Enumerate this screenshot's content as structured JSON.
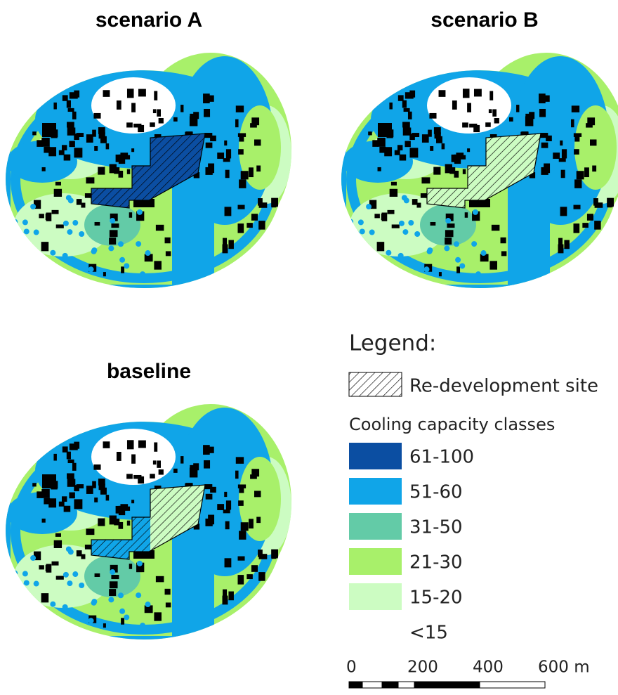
{
  "panels": [
    {
      "title": "scenario A"
    },
    {
      "title": "scenario B"
    },
    {
      "title": "baseline"
    }
  ],
  "legend": {
    "title": "Legend:",
    "site_label": "Re-development site",
    "classes_title": "Cooling capacity classes",
    "classes": [
      {
        "label": "61-100",
        "color": "#0b4ea2"
      },
      {
        "label": "51-60",
        "color": "#10a5e8"
      },
      {
        "label": "31-50",
        "color": "#63cba7"
      },
      {
        "label": "21-30",
        "color": "#a8f06a"
      },
      {
        "label": "15-20",
        "color": "#ccfcc2"
      },
      {
        "label": "<15",
        "color": "#ffffff"
      }
    ]
  },
  "scale_bar": {
    "labels": [
      "0",
      "200",
      "400",
      "600 m"
    ]
  }
}
